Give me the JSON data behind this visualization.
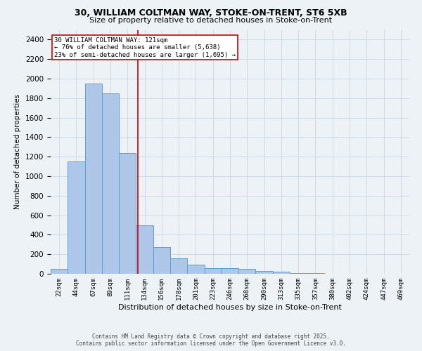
{
  "title1": "30, WILLIAM COLTMAN WAY, STOKE-ON-TRENT, ST6 5XB",
  "title2": "Size of property relative to detached houses in Stoke-on-Trent",
  "xlabel": "Distribution of detached houses by size in Stoke-on-Trent",
  "ylabel": "Number of detached properties",
  "categories": [
    "22sqm",
    "44sqm",
    "67sqm",
    "89sqm",
    "111sqm",
    "134sqm",
    "156sqm",
    "178sqm",
    "201sqm",
    "223sqm",
    "246sqm",
    "268sqm",
    "290sqm",
    "313sqm",
    "335sqm",
    "357sqm",
    "380sqm",
    "402sqm",
    "424sqm",
    "447sqm",
    "469sqm"
  ],
  "values": [
    50,
    1150,
    1950,
    1850,
    1240,
    500,
    275,
    160,
    90,
    55,
    55,
    50,
    30,
    20,
    10,
    5,
    3,
    2,
    2,
    1,
    1
  ],
  "bar_color": "#aec6e8",
  "bar_edge_color": "#5a9fd4",
  "grid_color": "#c8d8e8",
  "bg_color": "#edf2f7",
  "red_line_x": 4.62,
  "annotation_text": "30 WILLIAM COLTMAN WAY: 121sqm\n← 76% of detached houses are smaller (5,638)\n23% of semi-detached houses are larger (1,695) →",
  "annotation_box_color": "#ffffff",
  "annotation_border_color": "#cc0000",
  "footer1": "Contains HM Land Registry data © Crown copyright and database right 2025.",
  "footer2": "Contains public sector information licensed under the Open Government Licence v3.0.",
  "ylim": [
    0,
    2500
  ],
  "ytick_interval": 200
}
